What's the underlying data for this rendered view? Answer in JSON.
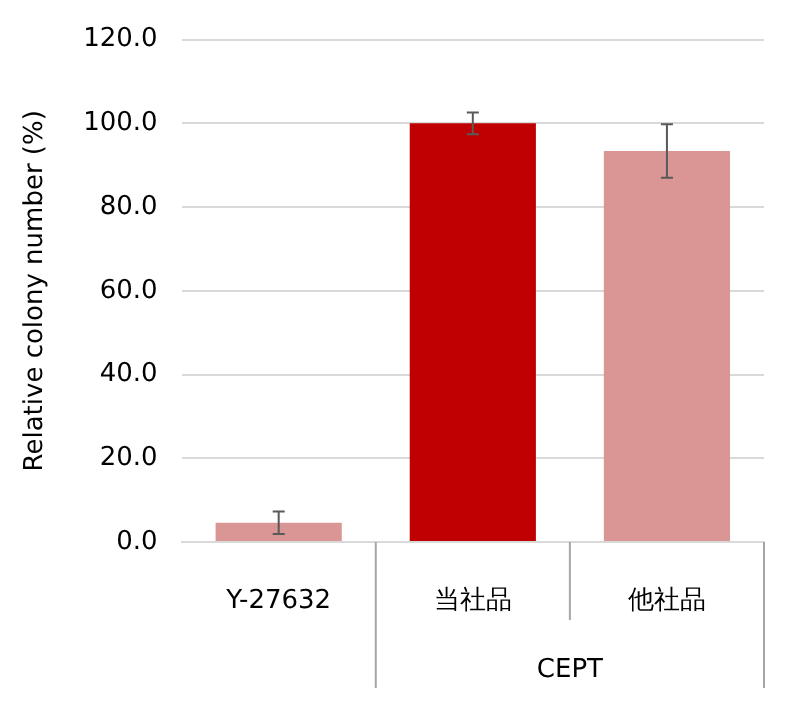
{
  "chart_data": {
    "type": "bar",
    "ylabel": "Relative colony number (%)",
    "categories": [
      "Y-27632",
      "当社品",
      "他社品"
    ],
    "values": [
      4.6,
      100,
      93.4
    ],
    "errors": [
      2.7,
      2.6,
      6.4
    ],
    "colors": [
      "#d99694",
      "#c00000",
      "#d99694"
    ],
    "ylim": [
      0,
      120
    ],
    "yticks": [
      {
        "value": 0,
        "label": "0.0"
      },
      {
        "value": 20,
        "label": "20.0"
      },
      {
        "value": 40,
        "label": "40.0"
      },
      {
        "value": 60,
        "label": "60.0"
      },
      {
        "value": 80,
        "label": "80.0"
      },
      {
        "value": 100,
        "label": "100.0"
      },
      {
        "value": 120,
        "label": "120.0"
      }
    ],
    "grid": "y",
    "annotations": [
      "CEPT"
    ]
  }
}
